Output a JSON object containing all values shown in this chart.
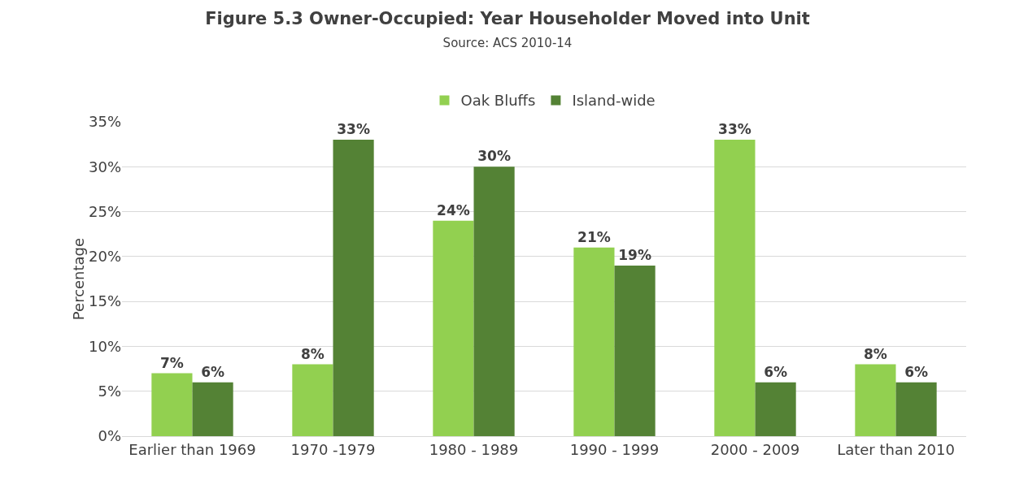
{
  "chart_data": {
    "type": "bar",
    "title": "Figure 5.3 Owner-Occupied: Year Householder Moved into Unit",
    "subtitle": "Source: ACS 2010-14",
    "ylabel": "Percentage",
    "categories": [
      "Earlier than 1969",
      "1970 -1979",
      "1980 - 1989",
      "1990 - 1999",
      "2000 - 2009",
      "Later than 2010"
    ],
    "series": [
      {
        "name": "Oak Bluffs",
        "color": "#92d050",
        "values": [
          7,
          8,
          24,
          21,
          33,
          8
        ],
        "value_labels": [
          "7%",
          "8%",
          "24%",
          "21%",
          "33%",
          "8%"
        ]
      },
      {
        "name": "Island-wide",
        "color": "#548235",
        "values": [
          6,
          33,
          30,
          19,
          6,
          6
        ],
        "value_labels": [
          "6%",
          "33%",
          "30%",
          "19%",
          "6%",
          "6%"
        ]
      }
    ],
    "ylim": [
      0,
      35
    ],
    "yticks": [
      {
        "value": 0,
        "label": "0%"
      },
      {
        "value": 5,
        "label": "5%"
      },
      {
        "value": 10,
        "label": "10%"
      },
      {
        "value": 15,
        "label": "15%"
      },
      {
        "value": 20,
        "label": "20%"
      },
      {
        "value": 25,
        "label": "25%"
      },
      {
        "value": 30,
        "label": "30%"
      },
      {
        "value": 35,
        "label": "35%"
      }
    ],
    "grid": "y",
    "legend": "top"
  }
}
